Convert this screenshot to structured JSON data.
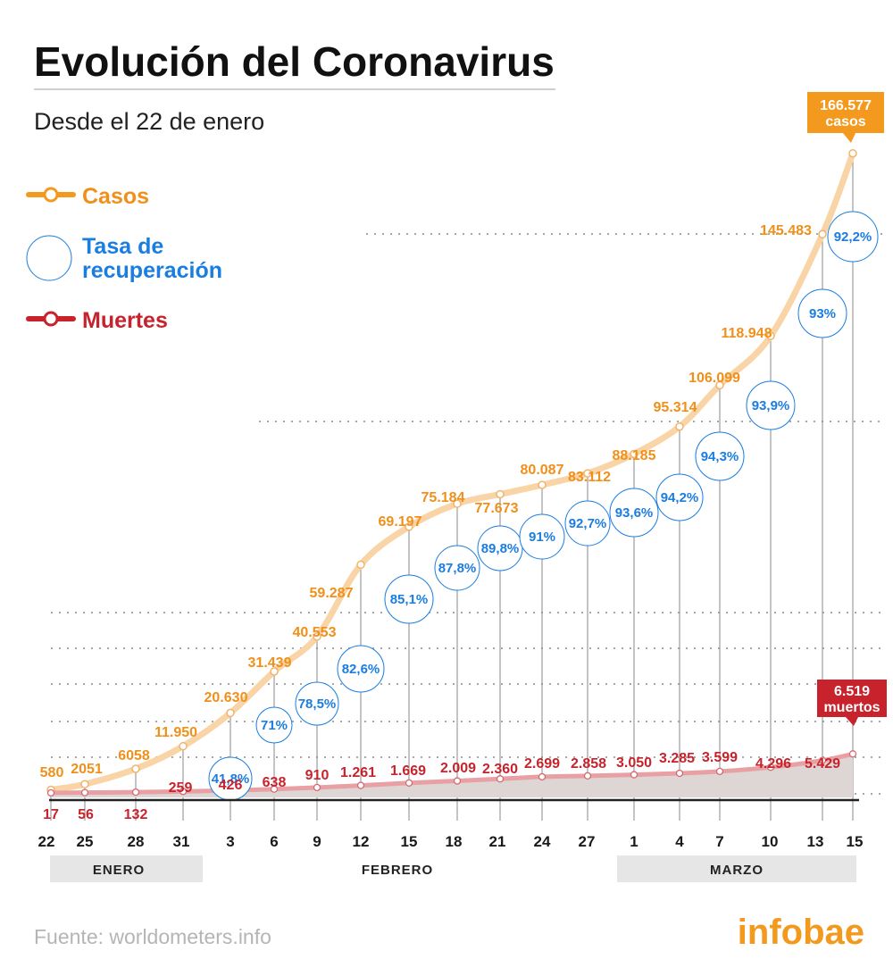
{
  "header": {
    "title": "Evolución del Coronavirus",
    "subtitle": "Desde el 22 de enero"
  },
  "legend": {
    "cases": "Casos",
    "recovery_line1": "Tasa de",
    "recovery_line2": "recuperación",
    "deaths": "Muertes"
  },
  "callouts": {
    "cases_value": "166.577",
    "cases_unit": "casos",
    "deaths_value": "6.519",
    "deaths_unit": "muertos"
  },
  "months": {
    "jan": "ENERO",
    "feb": "FEBRERO",
    "mar": "MARZO"
  },
  "footer": {
    "source": "Fuente: worldometers.info",
    "brand": "infobae"
  },
  "colors": {
    "cases_line": "#f8d4a6",
    "cases_label": "#f0901a",
    "deaths_line": "#e8a0a4",
    "deaths_label": "#c8232c",
    "recovery": "#1a7de0",
    "callout_cases_bg": "#f39a1e",
    "callout_deaths_bg": "#c8232c",
    "month_band": "#e6e6e6"
  },
  "chart_data": {
    "type": "line",
    "title": "Evolución del Coronavirus",
    "subtitle": "Desde el 22 de enero",
    "x": [
      "22",
      "25",
      "28",
      "31",
      "3",
      "6",
      "9",
      "12",
      "15",
      "18",
      "21",
      "24",
      "27",
      "1",
      "4",
      "7",
      "10",
      "13",
      "15"
    ],
    "series": [
      {
        "name": "Casos",
        "values": [
          580,
          2051,
          6058,
          11950,
          20630,
          31439,
          40553,
          59287,
          69197,
          75184,
          77673,
          80087,
          83112,
          88185,
          95314,
          106099,
          118948,
          145483,
          166577
        ],
        "labels": [
          "580",
          "2051",
          "6058",
          "11.950",
          "20.630",
          "31.439",
          "40.553",
          "59.287",
          "69.197",
          "75.184",
          "77.673",
          "80.087",
          "83.112",
          "88.185",
          "95.314",
          "106.099",
          "118.948",
          "145.483",
          "166.577"
        ]
      },
      {
        "name": "Muertes",
        "values": [
          17,
          56,
          132,
          259,
          426,
          638,
          910,
          1261,
          1669,
          2009,
          2360,
          2699,
          2858,
          3050,
          3285,
          3599,
          4296,
          5429,
          6519
        ],
        "labels": [
          "17",
          "56",
          "132",
          "259",
          "426",
          "638",
          "910",
          "1.261",
          "1.669",
          "2.009",
          "2.360",
          "2.699",
          "2.858",
          "3.050",
          "3.285",
          "3.599",
          "4.296",
          "5.429",
          "6.519"
        ]
      },
      {
        "name": "Tasa de recuperación",
        "x": [
          "3",
          "6",
          "9",
          "12",
          "15",
          "18",
          "21",
          "24",
          "27",
          "1",
          "4",
          "7",
          "10",
          "13",
          "15"
        ],
        "values": [
          41.8,
          71,
          78.5,
          82.6,
          85.1,
          87.8,
          89.8,
          91,
          92.7,
          93.6,
          94.2,
          94.3,
          93.9,
          93,
          92.2
        ],
        "labels": [
          "41,8%",
          "71%",
          "78,5%",
          "82,6%",
          "85,1%",
          "87,8%",
          "89,8%",
          "91%",
          "92,7%",
          "93,6%",
          "94,2%",
          "94,3%",
          "93,9%",
          "93%",
          "92,2%"
        ]
      }
    ],
    "months": [
      "ENERO",
      "FEBRERO",
      "MARZO"
    ],
    "xlabel": "",
    "ylabel": "",
    "grid": true,
    "legend_position": "top-left"
  }
}
